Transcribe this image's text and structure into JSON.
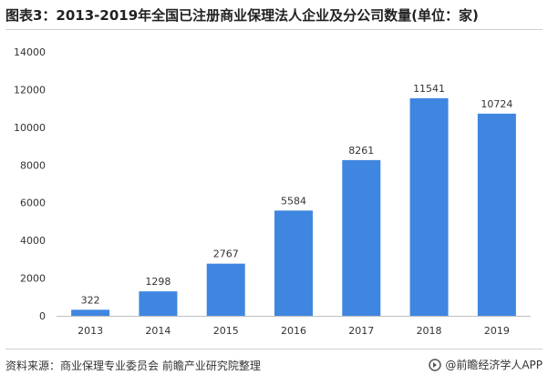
{
  "title": "图表3：2013-2019年全国已注册商业保理法人企业及分公司数量(单位：家)",
  "footer": {
    "source": "资料来源：商业保理专业委员会 前瞻产业研究院整理",
    "brand": "@前瞻经济学人APP",
    "brand_icon": "qianzhan-logo-icon"
  },
  "colors": {
    "bar": "#3f86e0",
    "axis": "#bfbfbf",
    "text": "#333333"
  },
  "chart_data": {
    "type": "bar",
    "categories": [
      "2013",
      "2014",
      "2015",
      "2016",
      "2017",
      "2018",
      "2019"
    ],
    "values": [
      322,
      1298,
      2767,
      5584,
      8261,
      11541,
      10724
    ],
    "yticks": [
      0,
      2000,
      4000,
      6000,
      8000,
      10000,
      12000,
      14000
    ],
    "ylim": [
      0,
      14000
    ],
    "grid": false,
    "legend": "none"
  }
}
